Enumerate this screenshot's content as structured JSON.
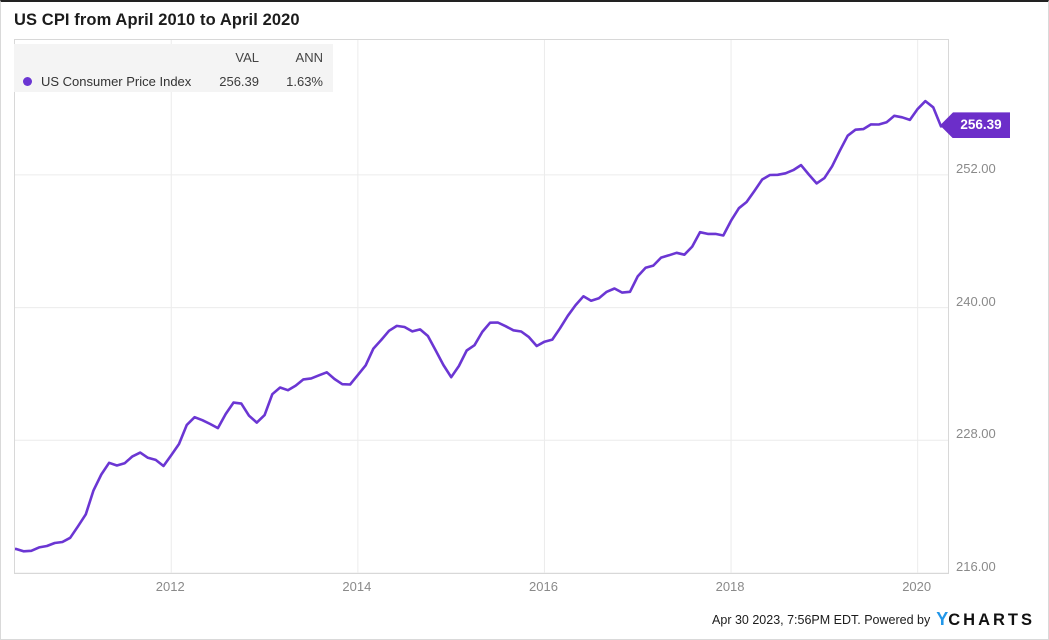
{
  "widget": {
    "title": "US CPI from April 2010 to April 2020"
  },
  "legend": {
    "val_header": "VAL",
    "ann_header": "ANN",
    "rows": [
      {
        "name": "US Consumer Price Index",
        "val": "256.39",
        "ann": "1.63%"
      }
    ]
  },
  "badge": {
    "label": "256.39"
  },
  "footer": {
    "attribution": "Apr 30 2023, 7:56PM EDT. Powered by",
    "logo_y": "Y",
    "logo_rest": "CHARTS",
    "logo_y_color": "#2196e8"
  },
  "chart_data": {
    "type": "line",
    "title": "US CPI from April 2010 to April 2020",
    "x_start": "2010-04",
    "x_end": "2020-04",
    "frequency": "monthly",
    "ylim": [
      216,
      264.2
    ],
    "grid": true,
    "badge_color": "#6c2ec9",
    "series": [
      {
        "name": "US Consumer Price Index",
        "color": "#6b36d3",
        "values": [
          218.009,
          218.178,
          217.965,
          218.011,
          218.312,
          218.439,
          218.711,
          218.803,
          219.179,
          220.223,
          221.309,
          223.467,
          224.906,
          225.964,
          225.722,
          225.922,
          226.545,
          226.889,
          226.421,
          226.23,
          225.672,
          226.665,
          227.663,
          229.392,
          230.085,
          229.815,
          229.478,
          229.104,
          230.379,
          231.407,
          231.317,
          230.221,
          229.601,
          230.28,
          232.166,
          232.773,
          232.531,
          232.945,
          233.504,
          233.596,
          233.877,
          234.149,
          233.546,
          233.069,
          233.049,
          233.916,
          234.781,
          236.293,
          237.072,
          237.9,
          238.343,
          238.25,
          237.852,
          238.031,
          237.433,
          236.151,
          234.812,
          233.707,
          234.722,
          236.119,
          236.599,
          237.805,
          238.638,
          238.654,
          238.316,
          237.945,
          237.838,
          237.336,
          236.525,
          236.916,
          237.111,
          238.132,
          239.261,
          240.229,
          241.018,
          240.628,
          240.849,
          241.428,
          241.729,
          241.353,
          241.432,
          242.839,
          243.603,
          243.801,
          244.524,
          244.733,
          244.955,
          244.786,
          245.519,
          246.819,
          246.663,
          246.669,
          246.524,
          247.867,
          248.991,
          249.554,
          250.546,
          251.588,
          251.989,
          252.006,
          252.146,
          252.439,
          252.885,
          252.038,
          251.233,
          251.712,
          252.776,
          254.202,
          255.548,
          256.092,
          256.143,
          256.571,
          256.558,
          256.759,
          257.346,
          257.208,
          256.974,
          257.971,
          258.678,
          258.115,
          256.389
        ]
      }
    ],
    "x_ticks": [
      {
        "label": "2012",
        "month_index": 21
      },
      {
        "label": "2014",
        "month_index": 45
      },
      {
        "label": "2016",
        "month_index": 69
      },
      {
        "label": "2018",
        "month_index": 93
      },
      {
        "label": "2020",
        "month_index": 117
      }
    ],
    "y_ticks": [
      {
        "label": "252.00",
        "value": 252
      },
      {
        "label": "240.00",
        "value": 240
      },
      {
        "label": "228.00",
        "value": 228
      },
      {
        "label": "216.00",
        "value": 216
      }
    ],
    "last_value_label": "256.39"
  }
}
